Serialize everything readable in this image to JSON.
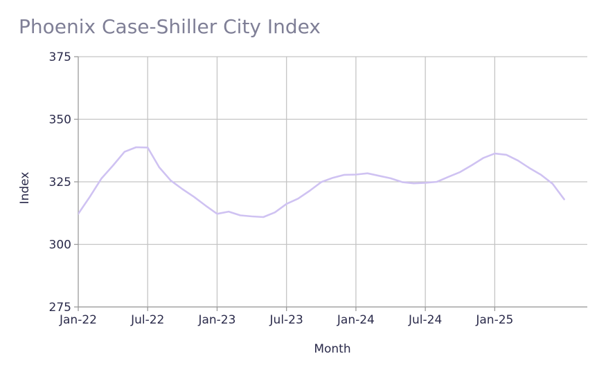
{
  "chart_data": {
    "type": "line",
    "title": "Phoenix Case-Shiller City Index",
    "xlabel": "Month",
    "ylabel": "Index",
    "ylim": [
      275,
      375
    ],
    "yticks": [
      275,
      300,
      325,
      350,
      375
    ],
    "x_range": [
      "2022-01",
      "2025-09"
    ],
    "xticks": [
      {
        "date": "2022-01",
        "label": "Jan-22"
      },
      {
        "date": "2022-07",
        "label": "Jul-22"
      },
      {
        "date": "2023-01",
        "label": "Jan-23"
      },
      {
        "date": "2023-07",
        "label": "Jul-23"
      },
      {
        "date": "2024-01",
        "label": "Jan-24"
      },
      {
        "date": "2024-07",
        "label": "Jul-24"
      },
      {
        "date": "2025-01",
        "label": "Jan-25"
      }
    ],
    "grid": true,
    "line_color": "#cfc2f2",
    "x": [
      "2022-01",
      "2022-02",
      "2022-03",
      "2022-04",
      "2022-05",
      "2022-06",
      "2022-07",
      "2022-08",
      "2022-09",
      "2022-10",
      "2022-11",
      "2022-12",
      "2023-01",
      "2023-02",
      "2023-03",
      "2023-04",
      "2023-05",
      "2023-06",
      "2023-07",
      "2023-08",
      "2023-09",
      "2023-10",
      "2023-11",
      "2023-12",
      "2024-01",
      "2024-02",
      "2024-03",
      "2024-04",
      "2024-05",
      "2024-06",
      "2024-07",
      "2024-08",
      "2024-09",
      "2024-10",
      "2024-11",
      "2024-12",
      "2025-01",
      "2025-02",
      "2025-03",
      "2025-04",
      "2025-05",
      "2025-06",
      "2025-07"
    ],
    "values": [
      312.2,
      319.0,
      326.3,
      331.5,
      337.0,
      338.8,
      338.7,
      330.8,
      325.5,
      322.1,
      319.0,
      315.5,
      312.2,
      313.1,
      311.6,
      311.2,
      310.9,
      312.8,
      316.2,
      318.3,
      321.4,
      324.9,
      326.6,
      327.8,
      327.9,
      328.4,
      327.4,
      326.4,
      324.9,
      324.4,
      324.6,
      325.0,
      327.0,
      328.9,
      331.6,
      334.5,
      336.3,
      335.8,
      333.5,
      330.5,
      327.8,
      324.2,
      318.0
    ]
  }
}
